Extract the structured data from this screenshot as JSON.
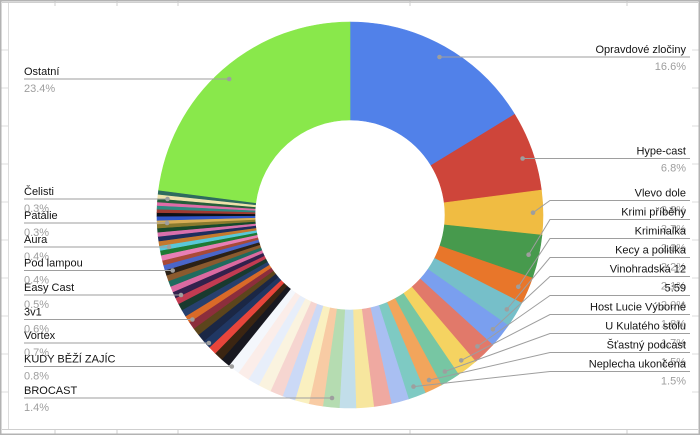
{
  "chart_data": {
    "type": "pie",
    "variant": "donut",
    "unit": "percent",
    "title": "",
    "legend_position": "none",
    "label_style": "callout lines with name and percent",
    "inner_radius_ratio": 0.49,
    "slices": [
      {
        "name": "Opravdové zločiny",
        "value": 16.6,
        "pct_label": "16.6%",
        "color": "#5181E9"
      },
      {
        "name": "Hype-cast",
        "value": 6.8,
        "pct_label": "6.8%",
        "color": "#CE453A"
      },
      {
        "name": "Vlevo dole",
        "value": 3.8,
        "pct_label": "3.8%",
        "color": "#F0BC42"
      },
      {
        "name": "Krimi příběhy",
        "value": 3.7,
        "pct_label": "3.7%",
        "color": "#479A4D"
      },
      {
        "name": "Kriminalka",
        "value": 2.3,
        "pct_label": "2.3%",
        "color": "#E8762A"
      },
      {
        "name": "Kecy a politika",
        "value": 2.2,
        "pct_label": "2.2%",
        "color": "#76BFC9"
      },
      {
        "name": "Vinohradská 12",
        "value": 2.1,
        "pct_label": "2.1%",
        "color": "#7A9FEF"
      },
      {
        "name": "5:59",
        "value": 2.0,
        "pct_label": "2.0%",
        "color": "#E1796A"
      },
      {
        "name": "Host Lucie Výborné",
        "value": 1.8,
        "pct_label": "1.8%",
        "color": "#F5D361"
      },
      {
        "name": "U Kulatého stolu",
        "value": 1.7,
        "pct_label": "1.7%",
        "color": "#77C6A3"
      },
      {
        "name": "Šťastný podcast",
        "value": 1.5,
        "pct_label": "1.5%",
        "color": "#F2A55C"
      },
      {
        "name": "Neplecha ukončena",
        "value": 1.5,
        "pct_label": "1.5%",
        "color": "#7ECAC3"
      },
      {
        "name": "",
        "value": 1.5,
        "pct_label": "",
        "color": "#A9BFF2"
      },
      {
        "name": "",
        "value": 1.5,
        "pct_label": "",
        "color": "#EFA9A1"
      },
      {
        "name": "",
        "value": 1.5,
        "pct_label": "",
        "color": "#F7E69E"
      },
      {
        "name": "",
        "value": 1.4,
        "pct_label": "",
        "color": "#C2DEEA"
      },
      {
        "name": "BROCAST",
        "value": 1.4,
        "pct_label": "1.4%",
        "color": "#B5DCB1"
      },
      {
        "name": "",
        "value": 1.2,
        "pct_label": "",
        "color": "#F8CBA4"
      },
      {
        "name": "",
        "value": 1.2,
        "pct_label": "",
        "color": "#FAF0C0"
      },
      {
        "name": "",
        "value": 1.1,
        "pct_label": "",
        "color": "#CBD9F6"
      },
      {
        "name": "",
        "value": 1.1,
        "pct_label": "",
        "color": "#F6D5D0"
      },
      {
        "name": "",
        "value": 1.1,
        "pct_label": "",
        "color": "#FAF3DF"
      },
      {
        "name": "",
        "value": 1.0,
        "pct_label": "",
        "color": "#E7EEFA"
      },
      {
        "name": "",
        "value": 1.0,
        "pct_label": "",
        "color": "#FBEDE9"
      },
      {
        "name": "",
        "value": 1.0,
        "pct_label": "",
        "color": "#F4F7FC"
      },
      {
        "name": "KUDY BĚŽÍ ZAJÍC",
        "value": 0.8,
        "pct_label": "0.8%",
        "color": "#181820"
      },
      {
        "name": "",
        "value": 0.75,
        "pct_label": "",
        "color": "#3B2512"
      },
      {
        "name": "",
        "value": 0.7,
        "pct_label": "",
        "color": "#E8453B"
      },
      {
        "name": "",
        "value": 0.7,
        "pct_label": "",
        "color": "#203763"
      },
      {
        "name": "Vortex",
        "value": 0.7,
        "pct_label": "0.7%",
        "color": "#1B2745"
      },
      {
        "name": "",
        "value": 0.65,
        "pct_label": "",
        "color": "#5C451C"
      },
      {
        "name": "",
        "value": 0.65,
        "pct_label": "",
        "color": "#8C2E3C"
      },
      {
        "name": "",
        "value": 0.6,
        "pct_label": "",
        "color": "#D96A28"
      },
      {
        "name": "3v1",
        "value": 0.6,
        "pct_label": "0.6%",
        "color": "#27406E"
      },
      {
        "name": "",
        "value": 0.6,
        "pct_label": "",
        "color": "#193A2F"
      },
      {
        "name": "",
        "value": 0.55,
        "pct_label": "",
        "color": "#C23B52"
      },
      {
        "name": "",
        "value": 0.55,
        "pct_label": "",
        "color": "#33214D"
      },
      {
        "name": "Easy Cast",
        "value": 0.5,
        "pct_label": "0.5%",
        "color": "#DB6AA1"
      },
      {
        "name": "",
        "value": 0.5,
        "pct_label": "",
        "color": "#1F6B5E"
      },
      {
        "name": "",
        "value": 0.5,
        "pct_label": "",
        "color": "#8A5A2E"
      },
      {
        "name": "",
        "value": 0.45,
        "pct_label": "",
        "color": "#2B2117"
      },
      {
        "name": "",
        "value": 0.45,
        "pct_label": "",
        "color": "#4A66C9"
      },
      {
        "name": "Pod lampou",
        "value": 0.4,
        "pct_label": "0.4%",
        "color": "#A94A38"
      },
      {
        "name": "",
        "value": 0.45,
        "pct_label": "",
        "color": "#E87FB5"
      },
      {
        "name": "",
        "value": 0.4,
        "pct_label": "",
        "color": "#1E7A34"
      },
      {
        "name": "",
        "value": 0.4,
        "pct_label": "",
        "color": "#59C8D8"
      },
      {
        "name": "Aura",
        "value": 0.4,
        "pct_label": "0.4%",
        "color": "#C5792D"
      },
      {
        "name": "",
        "value": 0.4,
        "pct_label": "",
        "color": "#1F2E5E"
      },
      {
        "name": "",
        "value": 0.35,
        "pct_label": "",
        "color": "#D970AC"
      },
      {
        "name": "",
        "value": 0.35,
        "pct_label": "",
        "color": "#174A2B"
      },
      {
        "name": "",
        "value": 0.35,
        "pct_label": "",
        "color": "#8A7A2E"
      },
      {
        "name": "Patálie",
        "value": 0.3,
        "pct_label": "0.3%",
        "color": "#D8AE56"
      },
      {
        "name": "",
        "value": 0.35,
        "pct_label": "",
        "color": "#2F55C8"
      },
      {
        "name": "",
        "value": 0.3,
        "pct_label": "",
        "color": "#0F1118"
      },
      {
        "name": "",
        "value": 0.3,
        "pct_label": "",
        "color": "#9E3B33"
      },
      {
        "name": "",
        "value": 0.3,
        "pct_label": "",
        "color": "#2E8A80"
      },
      {
        "name": "",
        "value": 0.3,
        "pct_label": "",
        "color": "#E06CA8"
      },
      {
        "name": "Čelisti",
        "value": 0.3,
        "pct_label": "0.3%",
        "color": "#265E3B"
      },
      {
        "name": "",
        "value": 0.35,
        "pct_label": "",
        "color": "#EFE2AC"
      },
      {
        "name": "",
        "value": 0.35,
        "pct_label": "",
        "color": "#2E6B5E"
      },
      {
        "name": "Ostatní",
        "value": 23.4,
        "pct_label": "23.4%",
        "color": "#89E84B"
      }
    ],
    "callout_color": "#9e9e9e",
    "name_text_color": "#141414",
    "pct_text_color": "#9e9e9e"
  }
}
